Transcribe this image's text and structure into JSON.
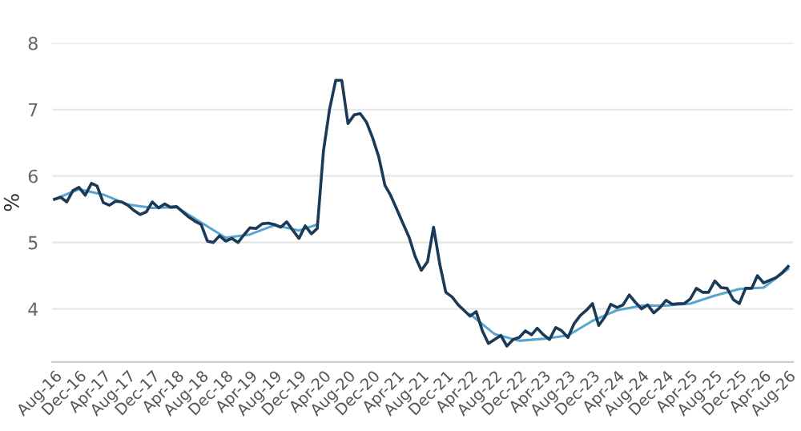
{
  "chart_data": {
    "type": "line",
    "ylabel": "%",
    "x": [
      "2016-08",
      "2016-09",
      "2016-10",
      "2016-11",
      "2016-12",
      "2017-01",
      "2017-02",
      "2017-03",
      "2017-04",
      "2017-05",
      "2017-06",
      "2017-07",
      "2017-08",
      "2017-09",
      "2017-10",
      "2017-11",
      "2017-12",
      "2018-01",
      "2018-02",
      "2018-03",
      "2018-04",
      "2018-05",
      "2018-06",
      "2018-07",
      "2018-08",
      "2018-09",
      "2018-10",
      "2018-11",
      "2018-12",
      "2019-01",
      "2019-02",
      "2019-03",
      "2019-04",
      "2019-05",
      "2019-06",
      "2019-07",
      "2019-08",
      "2019-09",
      "2019-10",
      "2019-11",
      "2019-12",
      "2020-01",
      "2020-02",
      "2020-03",
      "2020-04",
      "2020-05",
      "2020-06",
      "2020-07",
      "2020-08",
      "2020-09",
      "2020-10",
      "2020-11",
      "2020-12",
      "2021-01",
      "2021-02",
      "2021-03",
      "2021-04",
      "2021-05",
      "2021-06",
      "2021-07",
      "2021-08",
      "2021-09",
      "2021-10",
      "2021-11",
      "2021-12",
      "2022-01",
      "2022-02",
      "2022-03",
      "2022-04",
      "2022-05",
      "2022-06",
      "2022-07",
      "2022-08",
      "2022-09",
      "2022-10",
      "2022-11",
      "2022-12",
      "2023-01",
      "2023-02",
      "2023-03",
      "2023-04",
      "2023-05",
      "2023-06",
      "2023-07",
      "2023-08",
      "2023-09",
      "2023-10",
      "2023-11",
      "2023-12",
      "2024-01",
      "2024-02",
      "2024-03",
      "2024-04",
      "2024-05",
      "2024-06",
      "2024-07",
      "2024-08",
      "2024-09",
      "2024-10",
      "2024-11",
      "2024-12",
      "2025-01",
      "2025-02",
      "2025-03",
      "2025-04",
      "2025-05",
      "2025-06",
      "2025-07",
      "2025-08",
      "2025-09",
      "2025-10",
      "2025-11",
      "2025-12",
      "2026-01",
      "2026-02",
      "2026-03",
      "2026-04",
      "2026-05",
      "2026-06",
      "2026-07",
      "2026-08"
    ],
    "series": [
      {
        "color": "#1b3a57",
        "values": [
          5.65,
          5.68,
          5.61,
          5.78,
          5.83,
          5.71,
          5.89,
          5.85,
          5.6,
          5.56,
          5.62,
          5.61,
          5.56,
          5.48,
          5.42,
          5.46,
          5.61,
          5.52,
          5.58,
          5.53,
          5.54,
          5.46,
          5.38,
          5.32,
          5.27,
          5.02,
          5.0,
          5.1,
          5.02,
          5.06,
          5.0,
          5.11,
          5.22,
          5.21,
          5.28,
          5.29,
          5.27,
          5.23,
          5.31,
          5.18,
          5.06,
          5.25,
          5.13,
          5.21,
          6.38,
          7.0,
          7.44,
          7.44,
          6.79,
          6.92,
          6.94,
          6.81,
          6.58,
          6.29,
          5.86,
          5.71,
          5.5,
          5.29,
          5.08,
          4.79,
          4.58,
          4.71,
          5.23,
          4.67,
          4.25,
          4.18,
          4.06,
          3.98,
          3.89,
          3.96,
          3.67,
          3.48,
          3.54,
          3.6,
          3.44,
          3.54,
          3.57,
          3.67,
          3.61,
          3.71,
          3.61,
          3.54,
          3.72,
          3.67,
          3.57,
          3.78,
          3.9,
          3.98,
          4.08,
          3.75,
          3.88,
          4.07,
          4.02,
          4.06,
          4.21,
          4.1,
          4.0,
          4.06,
          3.94,
          4.02,
          4.13,
          4.07,
          4.08,
          4.08,
          4.15,
          4.31,
          4.25,
          4.25,
          4.42,
          4.32,
          4.31,
          4.14,
          4.08,
          4.31,
          4.31,
          4.5,
          4.39,
          4.43,
          4.47,
          4.54,
          4.64
        ]
      },
      {
        "color": "#5aa5d0",
        "x": [
          "2016-08",
          "2016-12",
          "2017-04",
          "2017-08",
          "2017-12",
          "2018-04",
          "2018-08",
          "2018-12",
          "2019-04",
          "2019-08",
          "2019-12",
          "2020-03",
          "2020-04",
          "2022-04",
          "2022-08",
          "2022-12",
          "2023-04",
          "2023-08",
          "2023-12",
          "2024-04",
          "2024-08",
          "2024-12",
          "2025-04",
          "2025-08",
          "2025-12",
          "2026-04",
          "2026-08"
        ],
        "values": [
          5.65,
          5.8,
          5.72,
          5.57,
          5.52,
          5.53,
          5.3,
          5.07,
          5.12,
          5.26,
          5.18,
          5.27,
          null,
          3.92,
          3.62,
          3.52,
          3.55,
          3.6,
          3.82,
          3.98,
          4.05,
          4.05,
          4.08,
          4.2,
          4.3,
          4.32,
          4.6
        ]
      }
    ],
    "xlim": [
      "2016-07-20",
      "2026-08-25"
    ],
    "xticks": [
      {
        "value": "2016-08",
        "label": "Aug-16"
      },
      {
        "value": "2016-12",
        "label": "Dec-16"
      },
      {
        "value": "2017-04",
        "label": "Apr-17"
      },
      {
        "value": "2017-08",
        "label": "Aug-17"
      },
      {
        "value": "2017-12",
        "label": "Dec-17"
      },
      {
        "value": "2018-04",
        "label": "Apr-18"
      },
      {
        "value": "2018-08",
        "label": "Aug-18"
      },
      {
        "value": "2018-12",
        "label": "Dec-18"
      },
      {
        "value": "2019-04",
        "label": "Apr-19"
      },
      {
        "value": "2019-08",
        "label": "Aug-19"
      },
      {
        "value": "2019-12",
        "label": "Dec-19"
      },
      {
        "value": "2020-04",
        "label": "Apr-20"
      },
      {
        "value": "2020-08",
        "label": "Aug-20"
      },
      {
        "value": "2020-12",
        "label": "Dec-20"
      },
      {
        "value": "2021-04",
        "label": "Apr-21"
      },
      {
        "value": "2021-08",
        "label": "Aug-21"
      },
      {
        "value": "2021-12",
        "label": "Dec-21"
      },
      {
        "value": "2022-04",
        "label": "Apr-22"
      },
      {
        "value": "2022-08",
        "label": "Aug-22"
      },
      {
        "value": "2022-12",
        "label": "Dec-22"
      },
      {
        "value": "2023-04",
        "label": "Apr-23"
      },
      {
        "value": "2023-08",
        "label": "Aug-23"
      },
      {
        "value": "2023-12",
        "label": "Dec-23"
      },
      {
        "value": "2024-04",
        "label": "Apr-24"
      },
      {
        "value": "2024-08",
        "label": "Aug-24"
      },
      {
        "value": "2024-12",
        "label": "Dec-24"
      },
      {
        "value": "2025-04",
        "label": "Apr-25"
      },
      {
        "value": "2025-08",
        "label": "Aug-25"
      },
      {
        "value": "2025-12",
        "label": "Dec-25"
      },
      {
        "value": "2026-04",
        "label": "Apr-26"
      },
      {
        "value": "2026-08",
        "label": "Aug-26"
      }
    ],
    "ylim": [
      3.2,
      8
    ],
    "yticks": [
      4,
      5,
      6,
      7,
      8
    ],
    "grid": "y",
    "marker": "none",
    "line_style": "solid"
  }
}
